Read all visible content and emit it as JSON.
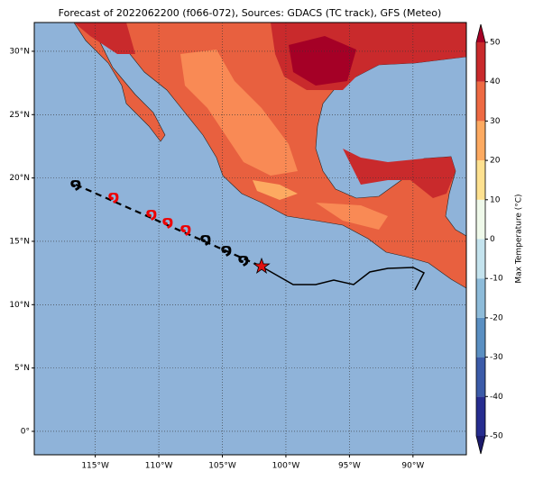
{
  "map": {
    "title": "Forecast of 2022062200 (f066-072), Sources: GDACS (TC track), GFS (Meteo)",
    "xlim": [
      -119.8,
      -85.8
    ],
    "ylim": [
      -1.85,
      32.27
    ],
    "xticks": [
      {
        "value": -115,
        "label": "115°W"
      },
      {
        "value": -110,
        "label": "110°W"
      },
      {
        "value": -105,
        "label": "105°W"
      },
      {
        "value": -100,
        "label": "100°W"
      },
      {
        "value": -95,
        "label": "95°W"
      },
      {
        "value": -90,
        "label": "90°W"
      }
    ],
    "yticks": [
      {
        "value": 0,
        "label": "0°"
      },
      {
        "value": 5,
        "label": "5°N"
      },
      {
        "value": 10,
        "label": "10°N"
      },
      {
        "value": 15,
        "label": "15°N"
      },
      {
        "value": 20,
        "label": "20°N"
      },
      {
        "value": 25,
        "label": "25°N"
      },
      {
        "value": 30,
        "label": "30°N"
      }
    ],
    "grid": true,
    "colorbar": {
      "label": "Max Temperature (°C)",
      "ylim": [
        -50,
        50
      ],
      "yticks": [
        -50,
        -40,
        -30,
        -20,
        -10,
        0,
        10,
        20,
        30,
        40,
        50
      ],
      "colors": [
        "#262d8f",
        "#3b5ba8",
        "#5a8fc2",
        "#8dbbd9",
        "#c4e3ee",
        "#eff9ea",
        "#fee190",
        "#fdaa61",
        "#ee6a43",
        "#c92a2c"
      ],
      "over_color": "#a50026",
      "under_color": "#1b1a6b"
    }
  }
}
